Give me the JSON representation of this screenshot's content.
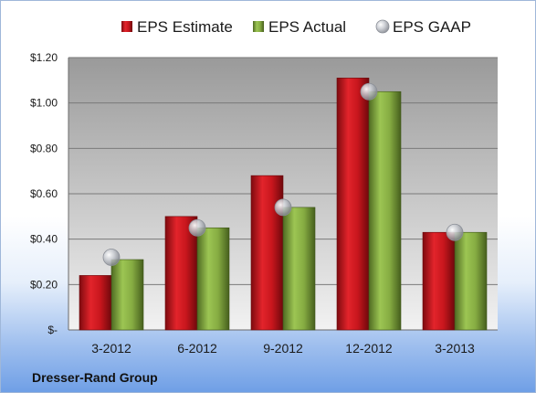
{
  "chart_data": {
    "type": "bar",
    "title": "",
    "xlabel": "",
    "ylabel": "",
    "categories": [
      "3-2012",
      "6-2012",
      "9-2012",
      "12-2012",
      "3-2013"
    ],
    "series": [
      {
        "name": "EPS Estimate",
        "kind": "bar",
        "color": "#c0141c",
        "values": [
          0.24,
          0.5,
          0.68,
          1.11,
          0.43
        ]
      },
      {
        "name": "EPS Actual",
        "kind": "bar",
        "color": "#7fa53a",
        "values": [
          0.31,
          0.45,
          0.54,
          1.05,
          0.43
        ]
      },
      {
        "name": "EPS GAAP",
        "kind": "marker",
        "color": "#b8bcc4",
        "values": [
          0.32,
          0.45,
          0.54,
          1.05,
          0.43
        ]
      }
    ],
    "ylim": [
      0,
      1.2
    ],
    "yticks": [
      0,
      0.2,
      0.4,
      0.6,
      0.8,
      1.0,
      1.2
    ],
    "ytick_labels": [
      "$-",
      "$0.20",
      "$0.40",
      "$0.60",
      "$0.80",
      "$1.00",
      "$1.20"
    ],
    "grid": true,
    "legend_position": "top",
    "footer": "Dresser-Rand Group"
  }
}
